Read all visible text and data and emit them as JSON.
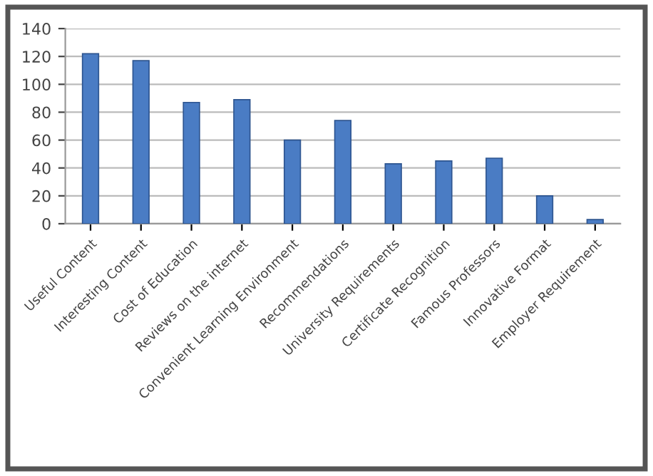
{
  "chart_data": {
    "type": "bar",
    "categories": [
      "Useful Content",
      "Interesting Content",
      "Cost of Education",
      "Reviews on the internet",
      "Convenient Learning Environment",
      "Recommendations",
      "University Requirements",
      "Certificate Recognition",
      "Famous Professors",
      "Innovative Format",
      "Employer Requirement"
    ],
    "values": [
      122,
      117,
      87,
      89,
      60,
      74,
      43,
      45,
      47,
      20,
      3
    ],
    "color": "#4a7cc4",
    "ylim": [
      0,
      140
    ],
    "yticks": [
      0,
      20,
      40,
      60,
      80,
      100,
      120,
      140
    ],
    "grid": "y"
  }
}
